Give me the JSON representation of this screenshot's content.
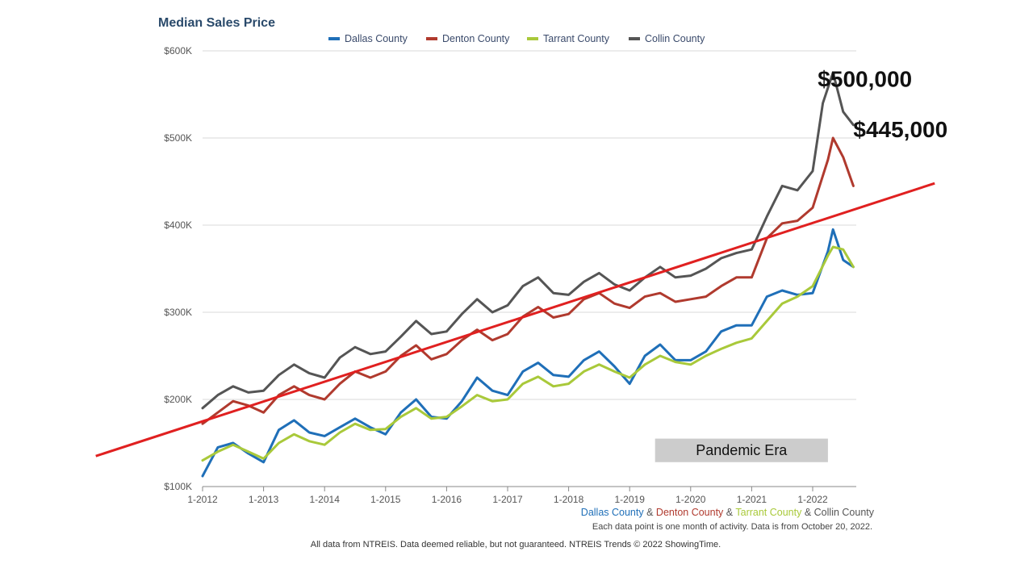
{
  "chart_data": {
    "type": "line",
    "title": "Median Sales Price",
    "ylim": [
      100000,
      600000
    ],
    "y_ticks": [
      {
        "value": 100000,
        "label": "$100K"
      },
      {
        "value": 200000,
        "label": "$200K"
      },
      {
        "value": 300000,
        "label": "$300K"
      },
      {
        "value": 400000,
        "label": "$400K"
      },
      {
        "value": 500000,
        "label": "$500K"
      },
      {
        "value": 600000,
        "label": "$600K"
      }
    ],
    "x_ticks": [
      "1-2012",
      "1-2013",
      "1-2014",
      "1-2015",
      "1-2016",
      "1-2017",
      "1-2018",
      "1-2019",
      "1-2020",
      "1-2021",
      "1-2022"
    ],
    "x_range": [
      "2012-01",
      "2022-09"
    ],
    "grid": "horizontal",
    "legend_position": "top",
    "series": [
      {
        "name": "Dallas County",
        "color": "#1f6fb8",
        "points": [
          [
            "2012-01",
            112000
          ],
          [
            "2012-04",
            145000
          ],
          [
            "2012-07",
            150000
          ],
          [
            "2012-10",
            138000
          ],
          [
            "2013-01",
            128000
          ],
          [
            "2013-04",
            165000
          ],
          [
            "2013-07",
            176000
          ],
          [
            "2013-10",
            162000
          ],
          [
            "2014-01",
            158000
          ],
          [
            "2014-04",
            168000
          ],
          [
            "2014-07",
            178000
          ],
          [
            "2014-10",
            168000
          ],
          [
            "2015-01",
            160000
          ],
          [
            "2015-04",
            185000
          ],
          [
            "2015-07",
            200000
          ],
          [
            "2015-10",
            180000
          ],
          [
            "2016-01",
            178000
          ],
          [
            "2016-04",
            198000
          ],
          [
            "2016-07",
            225000
          ],
          [
            "2016-10",
            210000
          ],
          [
            "2017-01",
            205000
          ],
          [
            "2017-04",
            232000
          ],
          [
            "2017-07",
            242000
          ],
          [
            "2017-10",
            228000
          ],
          [
            "2018-01",
            226000
          ],
          [
            "2018-04",
            245000
          ],
          [
            "2018-07",
            255000
          ],
          [
            "2018-10",
            238000
          ],
          [
            "2019-01",
            218000
          ],
          [
            "2019-04",
            250000
          ],
          [
            "2019-07",
            263000
          ],
          [
            "2019-10",
            245000
          ],
          [
            "2020-01",
            245000
          ],
          [
            "2020-04",
            255000
          ],
          [
            "2020-07",
            278000
          ],
          [
            "2020-10",
            285000
          ],
          [
            "2021-01",
            285000
          ],
          [
            "2021-04",
            318000
          ],
          [
            "2021-07",
            325000
          ],
          [
            "2021-10",
            320000
          ],
          [
            "2022-01",
            322000
          ],
          [
            "2022-04",
            370000
          ],
          [
            "2022-05",
            395000
          ],
          [
            "2022-07",
            360000
          ],
          [
            "2022-09",
            352000
          ]
        ]
      },
      {
        "name": "Denton County",
        "color": "#b03a2e",
        "points": [
          [
            "2012-01",
            172000
          ],
          [
            "2012-04",
            185000
          ],
          [
            "2012-07",
            198000
          ],
          [
            "2012-10",
            193000
          ],
          [
            "2013-01",
            185000
          ],
          [
            "2013-04",
            205000
          ],
          [
            "2013-07",
            215000
          ],
          [
            "2013-10",
            205000
          ],
          [
            "2014-01",
            200000
          ],
          [
            "2014-04",
            218000
          ],
          [
            "2014-07",
            232000
          ],
          [
            "2014-10",
            225000
          ],
          [
            "2015-01",
            232000
          ],
          [
            "2015-04",
            250000
          ],
          [
            "2015-07",
            262000
          ],
          [
            "2015-10",
            246000
          ],
          [
            "2016-01",
            252000
          ],
          [
            "2016-04",
            268000
          ],
          [
            "2016-07",
            280000
          ],
          [
            "2016-10",
            268000
          ],
          [
            "2017-01",
            275000
          ],
          [
            "2017-04",
            295000
          ],
          [
            "2017-07",
            306000
          ],
          [
            "2017-10",
            294000
          ],
          [
            "2018-01",
            298000
          ],
          [
            "2018-04",
            315000
          ],
          [
            "2018-07",
            322000
          ],
          [
            "2018-10",
            310000
          ],
          [
            "2019-01",
            305000
          ],
          [
            "2019-04",
            318000
          ],
          [
            "2019-07",
            322000
          ],
          [
            "2019-10",
            312000
          ],
          [
            "2020-01",
            315000
          ],
          [
            "2020-04",
            318000
          ],
          [
            "2020-07",
            330000
          ],
          [
            "2020-10",
            340000
          ],
          [
            "2021-01",
            340000
          ],
          [
            "2021-04",
            385000
          ],
          [
            "2021-07",
            402000
          ],
          [
            "2021-10",
            405000
          ],
          [
            "2022-01",
            420000
          ],
          [
            "2022-04",
            475000
          ],
          [
            "2022-05",
            500000
          ],
          [
            "2022-07",
            478000
          ],
          [
            "2022-09",
            445000
          ]
        ]
      },
      {
        "name": "Tarrant County",
        "color": "#a9c93a",
        "points": [
          [
            "2012-01",
            130000
          ],
          [
            "2012-04",
            140000
          ],
          [
            "2012-07",
            148000
          ],
          [
            "2012-10",
            140000
          ],
          [
            "2013-01",
            132000
          ],
          [
            "2013-04",
            150000
          ],
          [
            "2013-07",
            160000
          ],
          [
            "2013-10",
            152000
          ],
          [
            "2014-01",
            148000
          ],
          [
            "2014-04",
            162000
          ],
          [
            "2014-07",
            172000
          ],
          [
            "2014-10",
            165000
          ],
          [
            "2015-01",
            166000
          ],
          [
            "2015-04",
            180000
          ],
          [
            "2015-07",
            190000
          ],
          [
            "2015-10",
            178000
          ],
          [
            "2016-01",
            180000
          ],
          [
            "2016-04",
            192000
          ],
          [
            "2016-07",
            205000
          ],
          [
            "2016-10",
            198000
          ],
          [
            "2017-01",
            200000
          ],
          [
            "2017-04",
            218000
          ],
          [
            "2017-07",
            226000
          ],
          [
            "2017-10",
            215000
          ],
          [
            "2018-01",
            218000
          ],
          [
            "2018-04",
            232000
          ],
          [
            "2018-07",
            240000
          ],
          [
            "2018-10",
            232000
          ],
          [
            "2019-01",
            225000
          ],
          [
            "2019-04",
            240000
          ],
          [
            "2019-07",
            250000
          ],
          [
            "2019-10",
            243000
          ],
          [
            "2020-01",
            240000
          ],
          [
            "2020-04",
            250000
          ],
          [
            "2020-07",
            258000
          ],
          [
            "2020-10",
            265000
          ],
          [
            "2021-01",
            270000
          ],
          [
            "2021-04",
            290000
          ],
          [
            "2021-07",
            310000
          ],
          [
            "2021-10",
            318000
          ],
          [
            "2022-01",
            330000
          ],
          [
            "2022-04",
            365000
          ],
          [
            "2022-05",
            375000
          ],
          [
            "2022-07",
            372000
          ],
          [
            "2022-09",
            352000
          ]
        ]
      },
      {
        "name": "Collin County",
        "color": "#555555",
        "points": [
          [
            "2012-01",
            190000
          ],
          [
            "2012-04",
            205000
          ],
          [
            "2012-07",
            215000
          ],
          [
            "2012-10",
            208000
          ],
          [
            "2013-01",
            210000
          ],
          [
            "2013-04",
            228000
          ],
          [
            "2013-07",
            240000
          ],
          [
            "2013-10",
            230000
          ],
          [
            "2014-01",
            225000
          ],
          [
            "2014-04",
            248000
          ],
          [
            "2014-07",
            260000
          ],
          [
            "2014-10",
            252000
          ],
          [
            "2015-01",
            255000
          ],
          [
            "2015-04",
            272000
          ],
          [
            "2015-07",
            290000
          ],
          [
            "2015-10",
            275000
          ],
          [
            "2016-01",
            278000
          ],
          [
            "2016-04",
            298000
          ],
          [
            "2016-07",
            315000
          ],
          [
            "2016-10",
            300000
          ],
          [
            "2017-01",
            308000
          ],
          [
            "2017-04",
            330000
          ],
          [
            "2017-07",
            340000
          ],
          [
            "2017-10",
            322000
          ],
          [
            "2018-01",
            320000
          ],
          [
            "2018-04",
            335000
          ],
          [
            "2018-07",
            345000
          ],
          [
            "2018-10",
            332000
          ],
          [
            "2019-01",
            325000
          ],
          [
            "2019-04",
            340000
          ],
          [
            "2019-07",
            352000
          ],
          [
            "2019-10",
            340000
          ],
          [
            "2020-01",
            342000
          ],
          [
            "2020-04",
            350000
          ],
          [
            "2020-07",
            362000
          ],
          [
            "2020-10",
            368000
          ],
          [
            "2021-01",
            372000
          ],
          [
            "2021-04",
            410000
          ],
          [
            "2021-07",
            445000
          ],
          [
            "2021-10",
            440000
          ],
          [
            "2022-01",
            462000
          ],
          [
            "2022-03",
            540000
          ],
          [
            "2022-05",
            575000
          ],
          [
            "2022-07",
            530000
          ],
          [
            "2022-09",
            515000
          ]
        ]
      }
    ],
    "trend_line": {
      "color": "#e02020",
      "start": [
        "2010-04",
        135000
      ],
      "end": [
        "2024-01",
        448000
      ]
    },
    "annotations": [
      {
        "text": "$500,000",
        "x": "2022-02",
        "y": 568000
      },
      {
        "text": "$445,000",
        "x": "2022-09",
        "y": 510000
      }
    ],
    "shaded_band": {
      "text": "Pandemic Era",
      "x_start": "2019-06",
      "x_end": "2022-04",
      "y_low": 128000,
      "y_high": 155000,
      "color": "#cccccc"
    }
  },
  "legend_bottom": [
    {
      "text": "Dallas County",
      "color": "#1f6fb8"
    },
    {
      "text": " & ",
      "color": "#555555"
    },
    {
      "text": "Denton County",
      "color": "#b03a2e"
    },
    {
      "text": " & ",
      "color": "#555555"
    },
    {
      "text": "Tarrant County",
      "color": "#a9c93a"
    },
    {
      "text": " & ",
      "color": "#555555"
    },
    {
      "text": "Collin County",
      "color": "#555555"
    }
  ],
  "notes": {
    "data_point_note": "Each data point is one month of activity. Data is from October 20, 2022.",
    "footer": "All data from NTREIS. Data deemed reliable, but not guaranteed. NTREIS Trends © 2022 ShowingTime."
  }
}
